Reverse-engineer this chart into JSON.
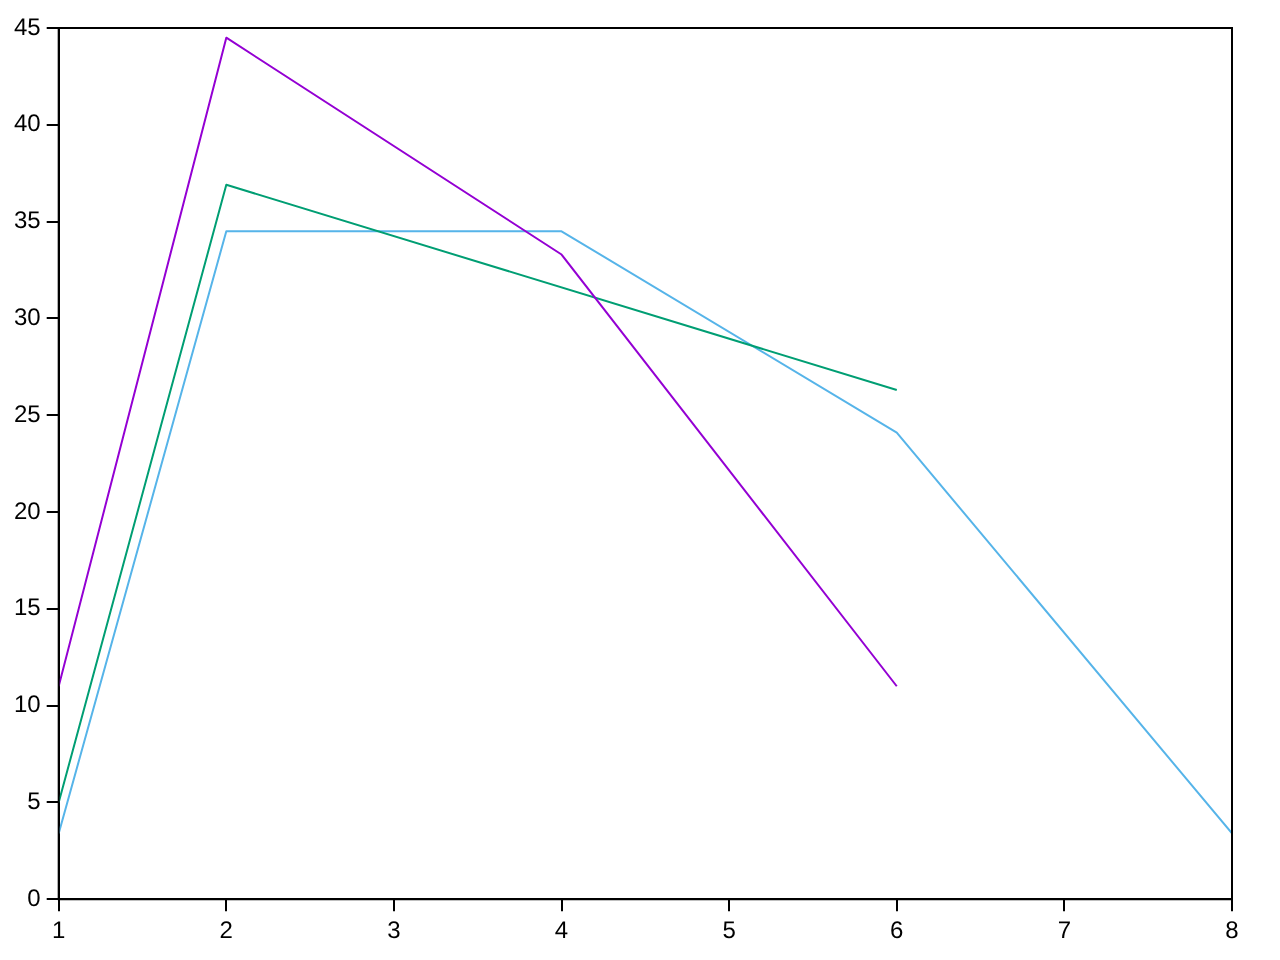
{
  "chart_data": {
    "type": "line",
    "xlim": [
      1,
      8
    ],
    "xticks": [
      1,
      2,
      3,
      4,
      5,
      6,
      7,
      8
    ],
    "ylim": [
      0,
      45
    ],
    "yticks": [
      0,
      5,
      10,
      15,
      20,
      25,
      30,
      35,
      40,
      45
    ],
    "grid": false,
    "legend": false,
    "marker": "none",
    "line_style": "solid",
    "series": [
      {
        "color": "#9400d3",
        "x": [
          1,
          2,
          4,
          6
        ],
        "values": [
          11.0,
          44.5,
          33.3,
          11.0
        ]
      },
      {
        "color": "#009e73",
        "x": [
          1,
          2,
          6
        ],
        "values": [
          5.0,
          36.9,
          26.3
        ]
      },
      {
        "color": "#56b4e9",
        "x": [
          1,
          2,
          4,
          6,
          8
        ],
        "values": [
          3.4,
          34.5,
          34.5,
          24.1,
          3.4
        ]
      }
    ]
  }
}
